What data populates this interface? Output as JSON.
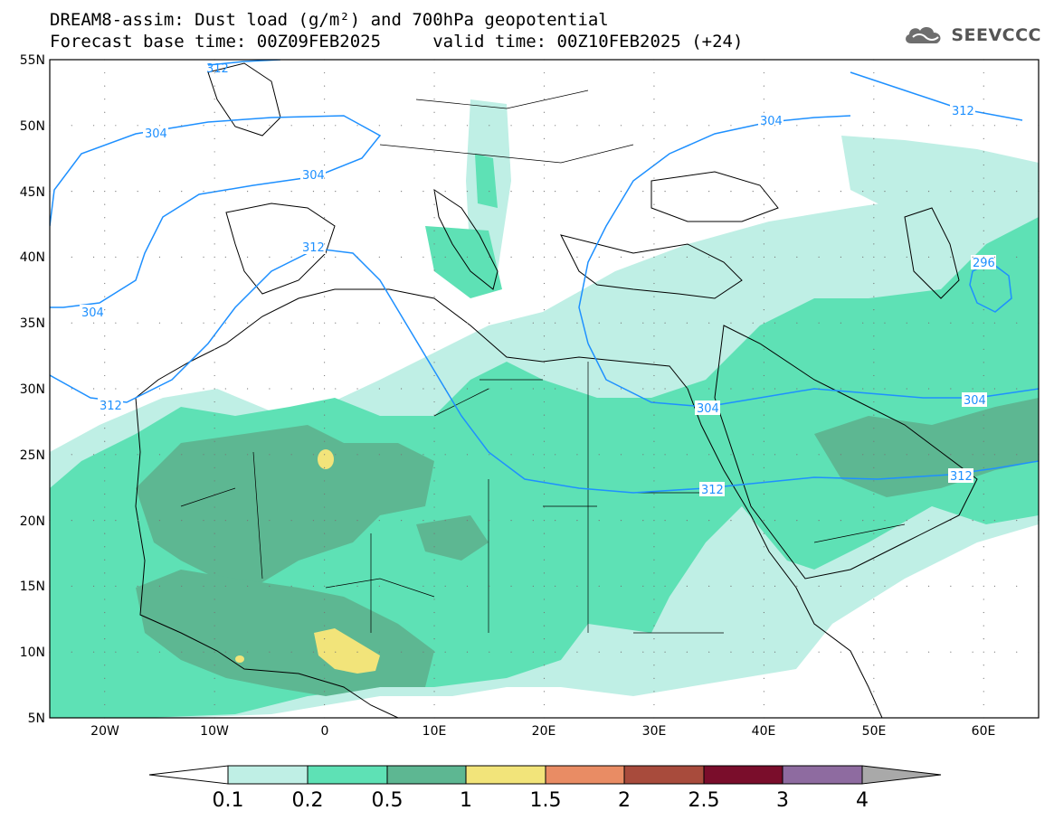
{
  "title": {
    "line1": "DREAM8-assim: Dust load (g/m²) and 700hPa geopotential",
    "line2": "Forecast base time: 00Z09FEB2025     valid time: 00Z10FEB2025 (+24)"
  },
  "logo": {
    "text": "SEEVCCC",
    "icon": "cloud-icon"
  },
  "map": {
    "lon_range": [
      -25,
      65
    ],
    "lat_range": [
      5,
      55
    ],
    "lat_labels": [
      "55N",
      "50N",
      "45N",
      "40N",
      "35N",
      "30N",
      "25N",
      "20N",
      "15N",
      "10N",
      "5N"
    ],
    "lon_labels": [
      "20W",
      "10W",
      "0",
      "10E",
      "20E",
      "30E",
      "40E",
      "50E",
      "60E"
    ],
    "contour_labels": [
      "312",
      "304",
      "304",
      "312",
      "304",
      "312",
      "296",
      "304",
      "312",
      "304",
      "312",
      "304",
      "312"
    ]
  },
  "colorbar": {
    "ticks": [
      "0.1",
      "0.2",
      "0.5",
      "1",
      "1.5",
      "2",
      "2.5",
      "3",
      "4"
    ],
    "colors": [
      "#ffffff",
      "#bfefe5",
      "#5ee1b5",
      "#5db792",
      "#f2e47a",
      "#e98c64",
      "#a84b3c",
      "#7a0d2b",
      "#8e6ba0",
      "#a9a9a9"
    ]
  },
  "dust_colors": {
    "light": "#bfefe5",
    "mid": "#5ee1b5",
    "dark": "#5db792",
    "yellow": "#f2e47a"
  },
  "contour_color": "#1e90ff"
}
